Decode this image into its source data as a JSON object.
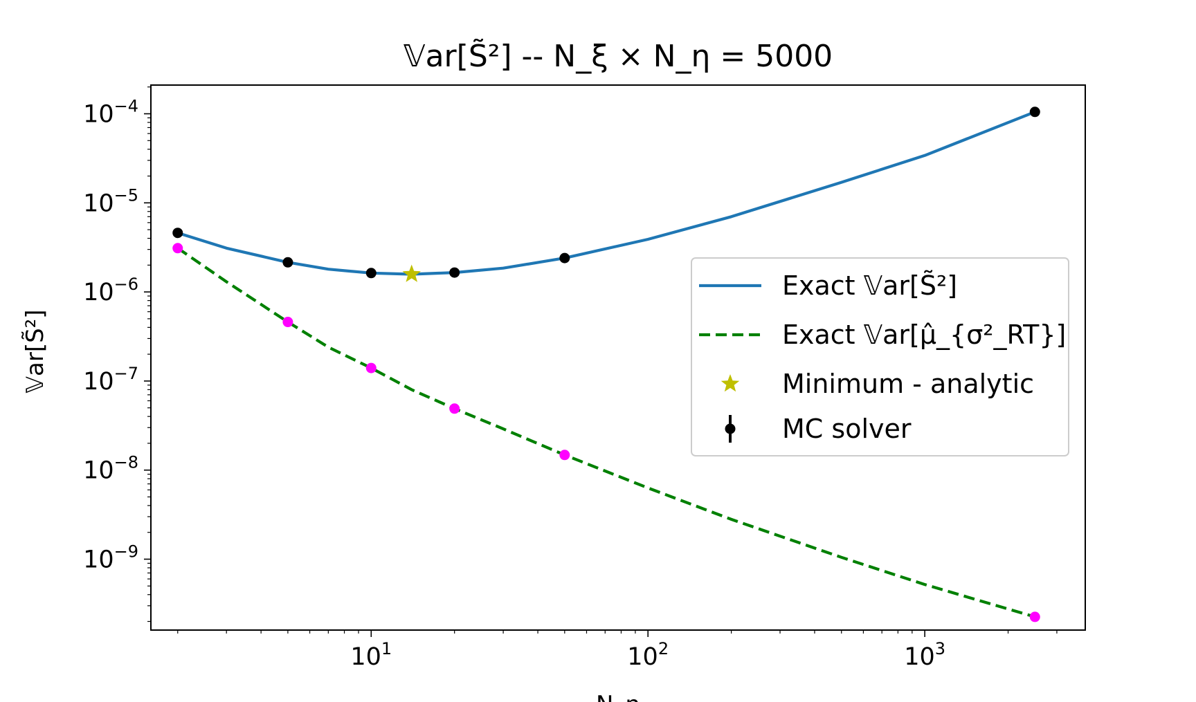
{
  "chart_data": {
    "type": "line",
    "title": "𝕍ar[S̃²] -- N_ξ × N_η = 5000",
    "xlabel": "N_η",
    "ylabel": "𝕍ar[S̃²]",
    "xscale": "log",
    "yscale": "log",
    "xlim": [
      1.6,
      3800
    ],
    "ylim": [
      1.6e-10,
      0.00021
    ],
    "x_ticks": [
      10,
      100,
      1000
    ],
    "x_tick_labels": [
      {
        "base": "10",
        "exp": "1"
      },
      {
        "base": "10",
        "exp": "2"
      },
      {
        "base": "10",
        "exp": "3"
      }
    ],
    "y_ticks": [
      1e-09,
      1e-08,
      1e-07,
      1e-06,
      1e-05,
      0.0001
    ],
    "y_tick_labels": [
      {
        "base": "10",
        "exp": "−9"
      },
      {
        "base": "10",
        "exp": "−8"
      },
      {
        "base": "10",
        "exp": "−7"
      },
      {
        "base": "10",
        "exp": "−6"
      },
      {
        "base": "10",
        "exp": "−5"
      },
      {
        "base": "10",
        "exp": "−4"
      }
    ],
    "grid": false,
    "legend_position": "center-right",
    "series": [
      {
        "name": "Exact 𝕍ar[S̃²]",
        "kind": "line",
        "color": "#1f77b4",
        "x": [
          2,
          3,
          5,
          7,
          10,
          14,
          20,
          30,
          50,
          100,
          200,
          500,
          1000,
          2500
        ],
        "y": [
          4.6e-06,
          3.1e-06,
          2.15e-06,
          1.8e-06,
          1.63e-06,
          1.58e-06,
          1.65e-06,
          1.85e-06,
          2.4e-06,
          3.9e-06,
          7e-06,
          1.7e-05,
          3.4e-05,
          0.000105
        ]
      },
      {
        "name": "Exact 𝕍ar[μ̂_{σ²_RT}]",
        "kind": "dashed",
        "color": "#008000",
        "x": [
          2,
          3,
          5,
          7,
          10,
          14,
          20,
          30,
          50,
          100,
          200,
          500,
          1000,
          2500
        ],
        "y": [
          3.1e-06,
          1.3e-06,
          4.6e-07,
          2.4e-07,
          1.4e-07,
          8e-08,
          4.9e-08,
          2.9e-08,
          1.48e-08,
          6.3e-09,
          2.8e-09,
          1.05e-09,
          5.2e-10,
          2.25e-10
        ]
      },
      {
        "name": "Minimum - analytic",
        "kind": "star",
        "color": "#bfbf00",
        "x": [
          14
        ],
        "y": [
          1.58e-06
        ]
      },
      {
        "name": "MC solver",
        "kind": "errorbar",
        "color": "#000000",
        "x": [
          2,
          5,
          10,
          20,
          50,
          2500
        ],
        "y": [
          4.6e-06,
          2.15e-06,
          1.63e-06,
          1.65e-06,
          2.4e-06,
          0.000105
        ]
      },
      {
        "kind": "points",
        "color": "#ff00ff",
        "x": [
          2,
          5,
          10,
          20,
          50,
          2500
        ],
        "y": [
          3.1e-06,
          4.6e-07,
          1.4e-07,
          4.9e-08,
          1.48e-08,
          2.25e-10
        ]
      }
    ]
  }
}
